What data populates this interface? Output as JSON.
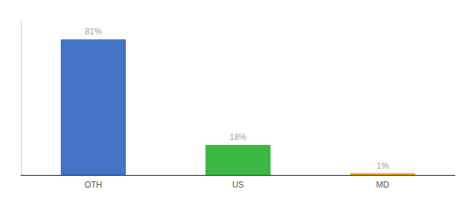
{
  "chart_data": {
    "type": "bar",
    "categories": [
      "OTH",
      "US",
      "MD"
    ],
    "values": [
      81,
      18,
      1
    ],
    "value_labels": [
      "81%",
      "18%",
      "1%"
    ],
    "colors": [
      "#4472c4",
      "#3cb844",
      "#f0a500"
    ],
    "ylim": [
      0,
      92
    ],
    "data_labels": true,
    "tick_labels": "x",
    "grid": false
  }
}
